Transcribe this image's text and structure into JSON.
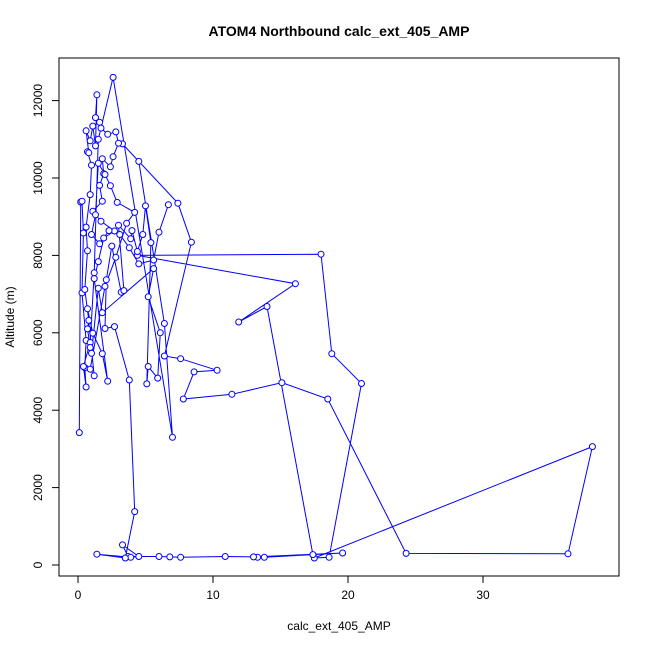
{
  "chart_data": {
    "type": "scatter",
    "title": "ATOM4 Northbound calc_ext_405_AMP",
    "xlabel": "calc_ext_405_AMP",
    "ylabel": "Altitude (m)",
    "xlim": [
      0,
      39
    ],
    "ylim": [
      0,
      12700
    ],
    "x_ticks": [
      0,
      10,
      20,
      30
    ],
    "x_tick_labels": [
      "0",
      "10",
      "20",
      "30"
    ],
    "y_ticks": [
      0,
      2000,
      4000,
      6000,
      8000,
      10000,
      12000
    ],
    "y_tick_labels": [
      "0",
      "2000",
      "4000",
      "6000",
      "8000",
      "10000",
      "12000"
    ],
    "grid": false,
    "colors": {
      "series": "#0000ff",
      "axis": "#000000",
      "background": "#ffffff"
    },
    "series": [
      {
        "connected": true,
        "marker": "open-circle",
        "points": [
          [
            0.1,
            3420
          ],
          [
            0.2,
            9380
          ],
          [
            0.3,
            9400
          ],
          [
            0.4,
            8580
          ],
          [
            0.3,
            7030
          ],
          [
            0.6,
            5800
          ],
          [
            0.5,
            5100
          ],
          [
            0.6,
            4600
          ],
          [
            0.4,
            5130
          ],
          [
            0.9,
            5750
          ],
          [
            1.2,
            7550
          ],
          [
            1.5,
            11000
          ],
          [
            2.6,
            12600
          ],
          [
            7.0,
            3300
          ],
          [
            6.4,
            6240
          ],
          [
            4.5,
            10430
          ],
          [
            3.3,
            10880
          ],
          [
            7.4,
            9350
          ],
          [
            8.4,
            8340
          ],
          [
            6.4,
            5400
          ],
          [
            7.6,
            5330
          ],
          [
            10.3,
            5030
          ],
          [
            8.6,
            4990
          ],
          [
            7.8,
            4290
          ],
          [
            11.4,
            4410
          ],
          [
            15.1,
            4710
          ],
          [
            18.5,
            4290
          ],
          [
            24.3,
            300
          ],
          [
            36.3,
            290
          ],
          [
            38.1,
            3060
          ],
          [
            17.5,
            180
          ],
          [
            18.6,
            200
          ],
          [
            21.0,
            4690
          ],
          [
            18.8,
            5460
          ],
          [
            18.0,
            8030
          ],
          [
            4.4,
            8000
          ],
          [
            16.1,
            7270
          ],
          [
            11.9,
            6280
          ],
          [
            14.0,
            6680
          ],
          [
            17.4,
            270
          ],
          [
            13.3,
            200
          ],
          [
            13.8,
            200
          ],
          [
            19.6,
            310
          ],
          [
            13.0,
            210
          ],
          [
            10.9,
            220
          ],
          [
            7.6,
            200
          ],
          [
            6.8,
            210
          ],
          [
            6.0,
            220
          ],
          [
            3.7,
            220
          ],
          [
            3.3,
            520
          ],
          [
            4.5,
            220
          ],
          [
            3.9,
            200
          ],
          [
            1.4,
            280
          ],
          [
            3.5,
            180
          ],
          [
            4.2,
            1380
          ],
          [
            3.8,
            4780
          ],
          [
            2.7,
            6160
          ],
          [
            2.0,
            6110
          ],
          [
            2.1,
            7370
          ],
          [
            2.5,
            8240
          ],
          [
            3.2,
            7050
          ],
          [
            3.4,
            7090
          ],
          [
            3.0,
            8780
          ],
          [
            3.9,
            8430
          ],
          [
            4.0,
            8640
          ],
          [
            4.4,
            8100
          ],
          [
            4.8,
            8540
          ],
          [
            5.0,
            9280
          ],
          [
            5.4,
            8330
          ],
          [
            5.1,
            4680
          ],
          [
            5.2,
            5130
          ],
          [
            5.9,
            4830
          ],
          [
            6.1,
            6000
          ],
          [
            5.2,
            6930
          ],
          [
            5.6,
            7660
          ],
          [
            1.8,
            6520
          ],
          [
            1.5,
            7150
          ],
          [
            1.0,
            5470
          ],
          [
            0.9,
            5620
          ],
          [
            0.7,
            6100
          ],
          [
            0.8,
            6320
          ],
          [
            0.5,
            7120
          ],
          [
            0.7,
            8120
          ],
          [
            0.6,
            8730
          ],
          [
            0.9,
            9570
          ],
          [
            1.0,
            10330
          ],
          [
            0.7,
            10680
          ],
          [
            0.8,
            10650
          ],
          [
            0.6,
            11220
          ],
          [
            0.9,
            10960
          ],
          [
            1.1,
            11340
          ],
          [
            1.3,
            10830
          ],
          [
            1.4,
            12150
          ],
          [
            1.3,
            11560
          ],
          [
            1.6,
            11440
          ],
          [
            1.7,
            11290
          ],
          [
            2.2,
            11130
          ],
          [
            2.8,
            11190
          ],
          [
            3.0,
            10900
          ],
          [
            2.6,
            10550
          ],
          [
            2.4,
            10290
          ],
          [
            1.8,
            10500
          ],
          [
            1.9,
            10110
          ],
          [
            1.6,
            9810
          ],
          [
            1.8,
            9400
          ],
          [
            1.1,
            9140
          ],
          [
            1.7,
            8880
          ],
          [
            2.7,
            8630
          ],
          [
            1.9,
            8450
          ],
          [
            1.5,
            7840
          ],
          [
            1.2,
            7400
          ],
          [
            2.2,
            4750
          ],
          [
            1.8,
            5460
          ],
          [
            1.1,
            5990
          ],
          [
            0.7,
            6620
          ],
          [
            1.2,
            4890
          ],
          [
            0.9,
            5060
          ],
          [
            2.0,
            7200
          ],
          [
            2.8,
            7950
          ],
          [
            3.6,
            8830
          ],
          [
            4.2,
            9110
          ],
          [
            2.9,
            9370
          ],
          [
            2.4,
            9800
          ],
          [
            2.0,
            10090
          ],
          [
            1.5,
            10380
          ],
          [
            1.3,
            9050
          ],
          [
            1.0,
            8540
          ],
          [
            1.6,
            8300
          ],
          [
            2.3,
            8640
          ],
          [
            3.1,
            8540
          ],
          [
            3.8,
            8200
          ],
          [
            4.5,
            7780
          ],
          [
            5.6,
            7880
          ],
          [
            6.0,
            8600
          ],
          [
            6.7,
            9310
          ]
        ]
      }
    ]
  }
}
